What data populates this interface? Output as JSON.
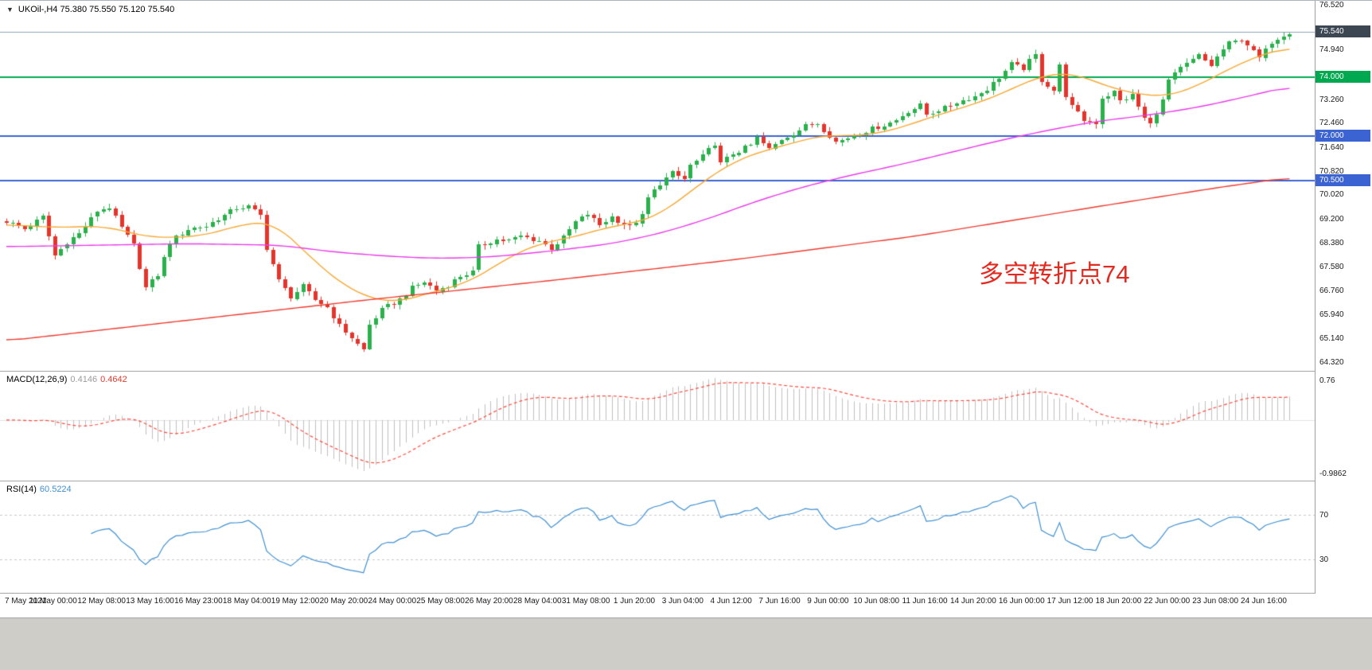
{
  "window": {
    "expand_icon": "▼",
    "ohlc_line": "UKOil-,H4  75.380 75.550 75.120 75.540"
  },
  "annotation": {
    "text": "多空转折点74",
    "color": "#e22a20"
  },
  "indicators": {
    "macd": {
      "label": "MACD(12,26,9)",
      "main_value": "0.4146",
      "signal_value": "0.4642",
      "axis_max": "0.76",
      "axis_min": "-0.9862"
    },
    "rsi": {
      "label": "RSI(14)",
      "value": "60.5224",
      "upper_level": "70",
      "lower_level": "30"
    }
  },
  "colors": {
    "candle_up": "#2bb14c",
    "candle_down": "#e5342b",
    "macd_histogram": "#bfbfbf",
    "macd_signal": "#ff4a3d",
    "rsi_line": "#3f8fd2",
    "level_green": "#00a94f",
    "level_blue": "#3c63d2",
    "current_price_badge": "#3d4653"
  },
  "chart_data": {
    "type": "candlestick",
    "symbol": "UKOil-",
    "timeframe": "H4",
    "ohlc_current": {
      "open": 75.38,
      "high": 75.55,
      "low": 75.12,
      "close": 75.54
    },
    "ylim": [
      64.15,
      76.6
    ],
    "n_candles": 213,
    "close_anchors": [
      [
        0,
        69.1
      ],
      [
        3,
        68.85
      ],
      [
        6,
        69.25
      ],
      [
        8,
        67.95
      ],
      [
        10,
        68.4
      ],
      [
        12,
        68.7
      ],
      [
        15,
        69.45
      ],
      [
        17,
        69.6
      ],
      [
        19,
        68.9
      ],
      [
        21,
        68.3
      ],
      [
        23,
        66.85
      ],
      [
        25,
        67.3
      ],
      [
        27,
        68.4
      ],
      [
        30,
        68.85
      ],
      [
        33,
        68.95
      ],
      [
        35,
        69.2
      ],
      [
        38,
        69.55
      ],
      [
        40,
        69.62
      ],
      [
        42,
        69.3
      ],
      [
        43,
        68.2
      ],
      [
        45,
        67.1
      ],
      [
        47,
        66.55
      ],
      [
        49,
        66.9
      ],
      [
        51,
        66.45
      ],
      [
        53,
        66.2
      ],
      [
        55,
        65.55
      ],
      [
        57,
        65.15
      ],
      [
        59,
        64.75
      ],
      [
        60,
        65.6
      ],
      [
        62,
        66.1
      ],
      [
        65,
        66.45
      ],
      [
        67,
        66.85
      ],
      [
        69,
        67.05
      ],
      [
        71,
        66.75
      ],
      [
        73,
        66.95
      ],
      [
        75,
        67.25
      ],
      [
        77,
        67.4
      ],
      [
        78,
        68.25
      ],
      [
        81,
        68.5
      ],
      [
        83,
        68.45
      ],
      [
        85,
        68.6
      ],
      [
        88,
        68.45
      ],
      [
        90,
        68.2
      ],
      [
        92,
        68.55
      ],
      [
        94,
        69.1
      ],
      [
        96,
        69.35
      ],
      [
        98,
        69.0
      ],
      [
        100,
        69.25
      ],
      [
        103,
        68.9
      ],
      [
        105,
        69.3
      ],
      [
        106,
        69.9
      ],
      [
        108,
        70.4
      ],
      [
        110,
        70.75
      ],
      [
        112,
        70.55
      ],
      [
        113,
        71.0
      ],
      [
        115,
        71.3
      ],
      [
        117,
        71.75
      ],
      [
        118,
        71.05
      ],
      [
        120,
        71.4
      ],
      [
        123,
        71.7
      ],
      [
        124,
        71.95
      ],
      [
        126,
        71.55
      ],
      [
        128,
        71.9
      ],
      [
        130,
        72.1
      ],
      [
        132,
        72.35
      ],
      [
        134,
        72.45
      ],
      [
        137,
        71.8
      ],
      [
        139,
        71.95
      ],
      [
        141,
        72.1
      ],
      [
        143,
        72.25
      ],
      [
        144,
        72.3
      ],
      [
        147,
        72.55
      ],
      [
        149,
        72.85
      ],
      [
        151,
        73.05
      ],
      [
        152,
        72.75
      ],
      [
        155,
        72.95
      ],
      [
        157,
        73.15
      ],
      [
        159,
        73.3
      ],
      [
        160,
        73.35
      ],
      [
        162,
        73.6
      ],
      [
        164,
        74.0
      ],
      [
        166,
        74.45
      ],
      [
        168,
        74.3
      ],
      [
        169,
        74.55
      ],
      [
        170,
        74.75
      ],
      [
        171,
        73.9
      ],
      [
        173,
        73.55
      ],
      [
        174,
        74.4
      ],
      [
        175,
        73.4
      ],
      [
        176,
        73.0
      ],
      [
        178,
        72.55
      ],
      [
        180,
        72.45
      ],
      [
        181,
        73.3
      ],
      [
        183,
        73.5
      ],
      [
        184,
        73.2
      ],
      [
        186,
        73.4
      ],
      [
        188,
        72.6
      ],
      [
        189,
        72.4
      ],
      [
        191,
        73.2
      ],
      [
        192,
        73.9
      ],
      [
        194,
        74.3
      ],
      [
        196,
        74.6
      ],
      [
        197,
        74.75
      ],
      [
        199,
        74.4
      ],
      [
        201,
        74.95
      ],
      [
        202,
        75.15
      ],
      [
        204,
        75.3
      ],
      [
        205,
        75.1
      ],
      [
        207,
        74.65
      ],
      [
        209,
        75.2
      ],
      [
        211,
        75.45
      ],
      [
        212,
        75.54
      ]
    ],
    "moving_averages": [
      {
        "name": "fast-ma",
        "color": "#f7a833",
        "anchors": [
          [
            0,
            69.0
          ],
          [
            8,
            68.9
          ],
          [
            16,
            68.95
          ],
          [
            24,
            68.55
          ],
          [
            32,
            68.6
          ],
          [
            40,
            69.05
          ],
          [
            44,
            69.1
          ],
          [
            48,
            68.35
          ],
          [
            52,
            67.55
          ],
          [
            56,
            66.9
          ],
          [
            60,
            66.5
          ],
          [
            64,
            66.35
          ],
          [
            68,
            66.55
          ],
          [
            72,
            66.8
          ],
          [
            76,
            67.0
          ],
          [
            80,
            67.5
          ],
          [
            84,
            68.0
          ],
          [
            88,
            68.35
          ],
          [
            92,
            68.5
          ],
          [
            96,
            68.7
          ],
          [
            100,
            68.95
          ],
          [
            104,
            69.05
          ],
          [
            108,
            69.35
          ],
          [
            112,
            69.95
          ],
          [
            116,
            70.6
          ],
          [
            120,
            71.1
          ],
          [
            124,
            71.45
          ],
          [
            128,
            71.65
          ],
          [
            132,
            71.9
          ],
          [
            136,
            72.05
          ],
          [
            140,
            72.0
          ],
          [
            144,
            72.1
          ],
          [
            148,
            72.3
          ],
          [
            152,
            72.6
          ],
          [
            156,
            72.85
          ],
          [
            160,
            73.1
          ],
          [
            164,
            73.4
          ],
          [
            168,
            73.8
          ],
          [
            172,
            74.1
          ],
          [
            176,
            74.15
          ],
          [
            180,
            73.85
          ],
          [
            184,
            73.55
          ],
          [
            188,
            73.4
          ],
          [
            192,
            73.35
          ],
          [
            196,
            73.65
          ],
          [
            200,
            74.05
          ],
          [
            204,
            74.5
          ],
          [
            208,
            74.8
          ],
          [
            212,
            75.05
          ]
        ]
      },
      {
        "name": "mid-ma",
        "color": "#ea3bea",
        "anchors": [
          [
            0,
            68.25
          ],
          [
            15,
            68.3
          ],
          [
            30,
            68.35
          ],
          [
            45,
            68.3
          ],
          [
            55,
            68.05
          ],
          [
            65,
            67.9
          ],
          [
            72,
            67.85
          ],
          [
            80,
            67.9
          ],
          [
            90,
            68.1
          ],
          [
            100,
            68.35
          ],
          [
            108,
            68.7
          ],
          [
            116,
            69.2
          ],
          [
            124,
            69.8
          ],
          [
            132,
            70.3
          ],
          [
            140,
            70.7
          ],
          [
            148,
            71.05
          ],
          [
            156,
            71.45
          ],
          [
            164,
            71.85
          ],
          [
            172,
            72.2
          ],
          [
            180,
            72.5
          ],
          [
            188,
            72.7
          ],
          [
            196,
            72.95
          ],
          [
            204,
            73.3
          ],
          [
            212,
            73.7
          ]
        ]
      },
      {
        "name": "slow-ma",
        "color": "#ef3b30",
        "anchors": [
          [
            0,
            65.05
          ],
          [
            30,
            65.75
          ],
          [
            60,
            66.45
          ],
          [
            90,
            67.1
          ],
          [
            120,
            67.8
          ],
          [
            150,
            68.6
          ],
          [
            180,
            69.6
          ],
          [
            200,
            70.25
          ],
          [
            212,
            70.6
          ]
        ]
      }
    ],
    "levels": [
      {
        "price": 74.0,
        "label": "74.000",
        "color": "#00a94f",
        "width": 2
      },
      {
        "price": 72.0,
        "label": "72.000",
        "color": "#3c63d2",
        "width": 2
      },
      {
        "price": 70.5,
        "label": "70.500",
        "color": "#3c63d2",
        "width": 2
      }
    ],
    "current_price": {
      "value": 75.54,
      "label": "75.540",
      "line_color": "#8fa0b4",
      "badge_bg": "#3d4653"
    },
    "y_axis_labels": [
      {
        "text": "76.520",
        "price": 76.52
      },
      {
        "text": "74.940",
        "price": 74.94
      },
      {
        "text": "73.260",
        "price": 73.26
      },
      {
        "text": "72.460",
        "price": 72.46
      },
      {
        "text": "71.640",
        "price": 71.64
      },
      {
        "text": "70.820",
        "price": 70.82
      },
      {
        "text": "70.020",
        "price": 70.02
      },
      {
        "text": "69.200",
        "price": 69.2
      },
      {
        "text": "68.380",
        "price": 68.38
      },
      {
        "text": "67.580",
        "price": 67.58
      },
      {
        "text": "66.760",
        "price": 66.76
      },
      {
        "text": "65.940",
        "price": 65.94
      },
      {
        "text": "65.140",
        "price": 65.14
      },
      {
        "text": "64.320",
        "price": 64.32
      }
    ],
    "x_axis_labels": [
      "7 May 2021",
      "11 May 00:00",
      "12 May 08:00",
      "13 May 16:00",
      "16 May 23:00",
      "18 May 04:00",
      "19 May 12:00",
      "20 May 20:00",
      "24 May 00:00",
      "25 May 08:00",
      "26 May 20:00",
      "28 May 04:00",
      "31 May 08:00",
      "1 Jun 20:00",
      "3 Jun 04:00",
      "4 Jun 12:00",
      "7 Jun 16:00",
      "9 Jun 00:00",
      "10 Jun 08:00",
      "11 Jun 16:00",
      "14 Jun 20:00",
      "16 Jun 00:00",
      "17 Jun 12:00",
      "18 Jun 20:00",
      "22 Jun 00:00",
      "23 Jun 08:00",
      "24 Jun 16:00"
    ],
    "macd": {
      "params": [
        12,
        26,
        9
      ]
    },
    "rsi": {
      "period": 14,
      "levels": [
        70,
        30
      ]
    }
  }
}
